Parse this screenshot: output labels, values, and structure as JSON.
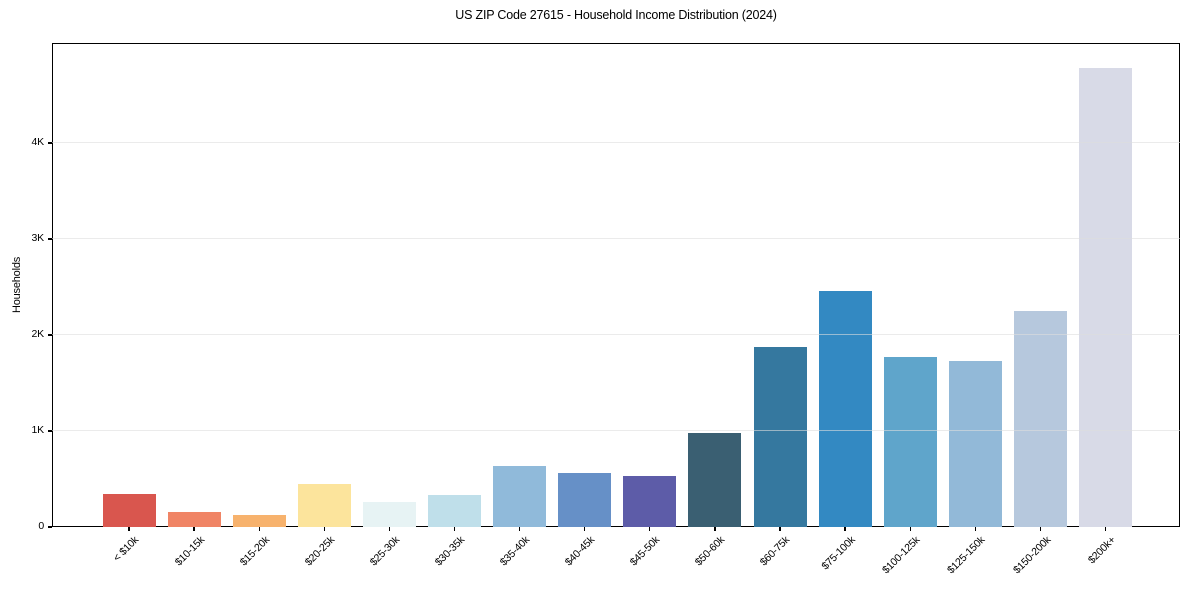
{
  "chart_data": {
    "type": "bar",
    "title": "US ZIP Code 27615 - Household Income Distribution (2024)",
    "xlabel": "",
    "ylabel": "Households",
    "categories": [
      "< $10k",
      "$10-15k",
      "$15-20k",
      "$20-25k",
      "$25-30k",
      "$30-35k",
      "$35-40k",
      "$40-45k",
      "$45-50k",
      "$50-60k",
      "$60-75k",
      "$75-100k",
      "$100-125k",
      "$125-150k",
      "$150-200k",
      "$200k+"
    ],
    "values": [
      340,
      155,
      120,
      445,
      260,
      335,
      640,
      560,
      530,
      980,
      1870,
      2460,
      1770,
      1725,
      2250,
      4780
    ],
    "bar_colors": [
      "#d9564e",
      "#f08465",
      "#f7b26d",
      "#fce49c",
      "#e7f3f4",
      "#bfdfea",
      "#90bada",
      "#6690c7",
      "#5d5ca8",
      "#3a5f72",
      "#35789f",
      "#3389c2",
      "#5fa5cb",
      "#92b9d8",
      "#b6c8dd",
      "#d8dae7"
    ],
    "yticks": [
      {
        "value": 0,
        "label": "0"
      },
      {
        "value": 1000,
        "label": "1K"
      },
      {
        "value": 2000,
        "label": "2K"
      },
      {
        "value": 3000,
        "label": "3K"
      },
      {
        "value": 4000,
        "label": "4K"
      }
    ],
    "ylim": [
      0,
      5040
    ],
    "grid": "horizontal",
    "legend": "none",
    "colors": {
      "background": "#ffffff",
      "spine": "#000000",
      "grid": "#dddddd",
      "text": "#000000"
    }
  }
}
